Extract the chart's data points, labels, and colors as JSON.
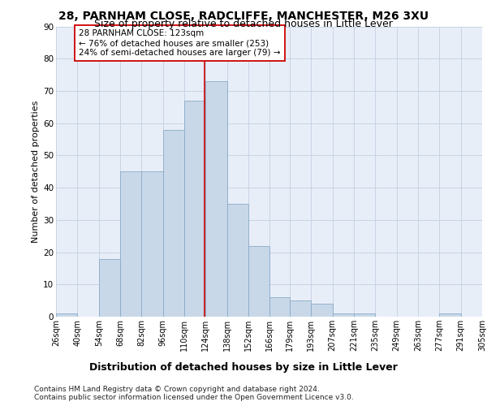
{
  "title": "28, PARNHAM CLOSE, RADCLIFFE, MANCHESTER, M26 3XU",
  "subtitle": "Size of property relative to detached houses in Little Lever",
  "xlabel": "Distribution of detached houses by size in Little Lever",
  "ylabel": "Number of detached properties",
  "bar_heights": [
    1,
    0,
    18,
    45,
    45,
    58,
    67,
    73,
    35,
    22,
    6,
    5,
    4,
    1,
    1,
    0,
    0,
    0,
    1,
    0
  ],
  "bin_edges": [
    26,
    40,
    54,
    68,
    82,
    96,
    110,
    124,
    138,
    152,
    166,
    179,
    193,
    207,
    221,
    235,
    249,
    263,
    277,
    291,
    305
  ],
  "tick_labels": [
    "26sqm",
    "40sqm",
    "54sqm",
    "68sqm",
    "82sqm",
    "96sqm",
    "110sqm",
    "124sqm",
    "138sqm",
    "152sqm",
    "166sqm",
    "179sqm",
    "193sqm",
    "207sqm",
    "221sqm",
    "235sqm",
    "249sqm",
    "263sqm",
    "277sqm",
    "291sqm",
    "305sqm"
  ],
  "bar_color": "#c8d8e8",
  "bar_edge_color": "#8aaac8",
  "vline_x": 123,
  "vline_color": "#cc0000",
  "box_text_line1": "28 PARNHAM CLOSE: 123sqm",
  "box_text_line2": "← 76% of detached houses are smaller (253)",
  "box_text_line3": "24% of semi-detached houses are larger (79) →",
  "box_edge_color": "#cc0000",
  "ylim": [
    0,
    90
  ],
  "yticks": [
    0,
    10,
    20,
    30,
    40,
    50,
    60,
    70,
    80,
    90
  ],
  "grid_color": "#c8d4e4",
  "background_color": "#e8eef8",
  "footer_line1": "Contains HM Land Registry data © Crown copyright and database right 2024.",
  "footer_line2": "Contains public sector information licensed under the Open Government Licence v3.0.",
  "title_fontsize": 10,
  "subtitle_fontsize": 9,
  "ylabel_fontsize": 8,
  "xlabel_fontsize": 9,
  "tick_fontsize": 7,
  "footer_fontsize": 6.5,
  "annotation_fontsize": 7.5
}
